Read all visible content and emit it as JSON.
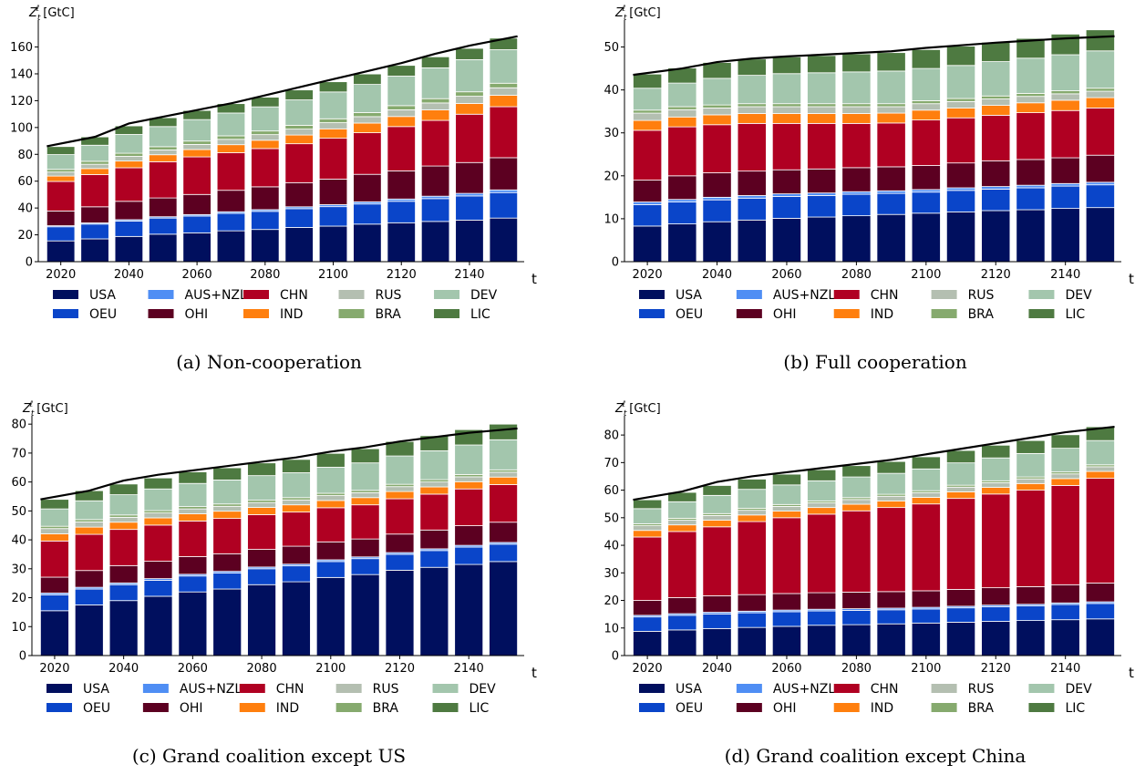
{
  "legend_order": [
    "USA",
    "OEU",
    "AUS+NZL",
    "OHI",
    "CHN",
    "IND",
    "RUS",
    "BRA",
    "DEV",
    "LIC"
  ],
  "series_styles": [
    {
      "name": "USA",
      "color": "#000f5e"
    },
    {
      "name": "OEU",
      "color": "#0a45c9"
    },
    {
      "name": "AUS+NZL",
      "color": "#4f8ef4"
    },
    {
      "name": "OHI",
      "color": "#5c0021"
    },
    {
      "name": "CHN",
      "color": "#b00022"
    },
    {
      "name": "IND",
      "color": "#ff7f0e"
    },
    {
      "name": "RUS",
      "color": "#b4bfb1"
    },
    {
      "name": "BRA",
      "color": "#86aa6e"
    },
    {
      "name": "DEV",
      "color": "#a3c6ad"
    },
    {
      "name": "LIC",
      "color": "#4e7a41"
    }
  ],
  "chart_data": [
    {
      "type": "bar",
      "stacked": true,
      "caption": "(a) Non-cooperation",
      "ylabel": "Z_t^ℓ [GtC]",
      "xlabel": "t",
      "ylim": [
        0,
        176
      ],
      "yticks": [
        0,
        20,
        40,
        60,
        80,
        100,
        120,
        140,
        160
      ],
      "xticks": [
        2020,
        2040,
        2060,
        2080,
        2100,
        2120,
        2140
      ],
      "categories": [
        2020,
        2030,
        2040,
        2050,
        2060,
        2070,
        2080,
        2090,
        2100,
        2110,
        2120,
        2130,
        2140,
        2150
      ],
      "total_line": [
        86,
        93,
        103,
        108,
        113,
        118,
        124,
        130,
        136,
        142,
        148,
        155,
        161,
        168
      ],
      "series": [
        {
          "name": "USA",
          "values": [
            15.5,
            17,
            18.8,
            20.5,
            21.5,
            23,
            24,
            25.5,
            26.5,
            28,
            29,
            30,
            31,
            32.5
          ]
        },
        {
          "name": "OEU",
          "values": [
            10.5,
            11,
            11.5,
            12,
            12.5,
            13,
            13.5,
            14,
            14.5,
            15,
            16,
            17,
            18,
            19
          ]
        },
        {
          "name": "AUS+NZL",
          "values": [
            0.8,
            0.9,
            1,
            1,
            1.1,
            1.2,
            1.3,
            1.4,
            1.5,
            1.6,
            1.7,
            1.8,
            1.9,
            2
          ]
        },
        {
          "name": "OHI",
          "values": [
            11,
            12,
            13.7,
            14,
            15,
            16,
            17,
            18,
            19,
            20.5,
            21,
            22.5,
            23,
            24
          ]
        },
        {
          "name": "CHN",
          "values": [
            22,
            24,
            25,
            27,
            28,
            28,
            28.5,
            29,
            30.5,
            31,
            33,
            34,
            36,
            38
          ]
        },
        {
          "name": "IND",
          "values": [
            4,
            4.5,
            5,
            5.2,
            5.5,
            6,
            6.2,
            6.5,
            7,
            7.2,
            7.5,
            7.8,
            8,
            8.5
          ]
        },
        {
          "name": "RUS",
          "values": [
            3,
            3.2,
            3.5,
            3.6,
            3.8,
            4,
            4.2,
            4.4,
            4.6,
            4.8,
            5,
            5.2,
            5.4,
            5.6
          ]
        },
        {
          "name": "BRA",
          "values": [
            2,
            2.2,
            2.3,
            2.4,
            2.5,
            2.6,
            2.7,
            2.8,
            2.9,
            3,
            3.1,
            3.2,
            3.3,
            3.4
          ]
        },
        {
          "name": "DEV",
          "values": [
            11,
            12,
            14,
            15,
            16,
            17,
            18,
            19,
            20,
            21,
            22,
            23,
            24,
            25
          ]
        },
        {
          "name": "LIC",
          "values": [
            6,
            6.2,
            6.4,
            6.6,
            6.8,
            7,
            7.2,
            7.4,
            7.6,
            7.8,
            8,
            8.2,
            8.4,
            8.6
          ]
        }
      ]
    },
    {
      "type": "bar",
      "stacked": true,
      "caption": "(b) Full cooperation",
      "ylabel": "Z_t^ℓ [GtC]",
      "xlabel": "t",
      "ylim": [
        0,
        55
      ],
      "yticks": [
        0,
        10,
        20,
        30,
        40,
        50
      ],
      "xticks": [
        2020,
        2040,
        2060,
        2080,
        2100,
        2120,
        2140
      ],
      "categories": [
        2020,
        2030,
        2040,
        2050,
        2060,
        2070,
        2080,
        2090,
        2100,
        2110,
        2120,
        2130,
        2140,
        2150
      ],
      "total_line": [
        43.5,
        45,
        46.5,
        47.3,
        47.8,
        48.2,
        48.6,
        49,
        49.8,
        50.4,
        51,
        51.5,
        52,
        52.5
      ],
      "series": [
        {
          "name": "USA",
          "values": [
            8.3,
            8.8,
            9.3,
            9.7,
            10.1,
            10.4,
            10.7,
            11,
            11.3,
            11.6,
            11.9,
            12.1,
            12.4,
            12.6
          ]
        },
        {
          "name": "OEU",
          "values": [
            5,
            5.1,
            5.1,
            5.1,
            5.1,
            5,
            5,
            4.9,
            4.9,
            5,
            5,
            5.1,
            5.2,
            5.3
          ]
        },
        {
          "name": "AUS+NZL",
          "values": [
            0.6,
            0.6,
            0.6,
            0.6,
            0.6,
            0.6,
            0.6,
            0.6,
            0.6,
            0.6,
            0.6,
            0.6,
            0.6,
            0.6
          ]
        },
        {
          "name": "OHI",
          "values": [
            5.1,
            5.5,
            5.7,
            5.7,
            5.6,
            5.6,
            5.6,
            5.6,
            5.6,
            5.8,
            6,
            6,
            6,
            6.3
          ]
        },
        {
          "name": "CHN",
          "values": [
            11.6,
            11.4,
            11.2,
            11.1,
            10.8,
            10.6,
            10.3,
            10.2,
            10.6,
            10.5,
            10.6,
            10.9,
            11,
            11
          ]
        },
        {
          "name": "IND",
          "values": [
            2.3,
            2.3,
            2.3,
            2.3,
            2.3,
            2.3,
            2.3,
            2.3,
            2.3,
            2.3,
            2.3,
            2.3,
            2.4,
            2.4
          ]
        },
        {
          "name": "RUS",
          "values": [
            1.7,
            1.7,
            1.6,
            1.6,
            1.6,
            1.6,
            1.6,
            1.5,
            1.5,
            1.5,
            1.5,
            1.5,
            1.5,
            1.5
          ]
        },
        {
          "name": "BRA",
          "values": [
            0.7,
            0.7,
            0.7,
            0.7,
            0.7,
            0.7,
            0.7,
            0.7,
            0.7,
            0.7,
            0.7,
            0.7,
            0.7,
            0.7
          ]
        },
        {
          "name": "DEV",
          "values": [
            5.1,
            5.5,
            6.2,
            6.6,
            7,
            7.2,
            7.4,
            7.6,
            7.5,
            7.7,
            8,
            8.2,
            8.4,
            8.7
          ]
        },
        {
          "name": "LIC",
          "values": [
            3.3,
            3.5,
            3.7,
            3.8,
            3.9,
            4,
            4.2,
            4.3,
            4.4,
            4.5,
            4.5,
            4.6,
            4.8,
            4.9
          ]
        }
      ]
    },
    {
      "type": "bar",
      "stacked": true,
      "caption": "(c) Grand coalition except US",
      "ylabel": "Z_t^ℓ [GtC]",
      "xlabel": "t",
      "ylim": [
        0,
        81
      ],
      "yticks": [
        0,
        10,
        20,
        30,
        40,
        50,
        60,
        70,
        80
      ],
      "xticks": [
        2020,
        2040,
        2060,
        2080,
        2100,
        2120,
        2140
      ],
      "categories": [
        2020,
        2030,
        2040,
        2050,
        2060,
        2070,
        2080,
        2090,
        2100,
        2110,
        2120,
        2130,
        2140,
        2150
      ],
      "total_line": [
        54,
        57,
        60.5,
        62.5,
        64,
        65.5,
        67,
        68.5,
        70.5,
        72,
        74,
        75.5,
        77,
        78.5
      ],
      "series": [
        {
          "name": "USA",
          "values": [
            15.5,
            17.5,
            19,
            20.5,
            22,
            23,
            24.5,
            25.5,
            27,
            28,
            29.5,
            30.5,
            31.5,
            32.5
          ]
        },
        {
          "name": "OEU",
          "values": [
            5.5,
            5.5,
            5.5,
            5.5,
            5.5,
            5.5,
            5.5,
            5.5,
            5.5,
            5.5,
            5.5,
            5.8,
            6,
            6
          ]
        },
        {
          "name": "AUS+NZL",
          "values": [
            0.6,
            0.6,
            0.6,
            0.6,
            0.6,
            0.6,
            0.6,
            0.6,
            0.6,
            0.6,
            0.6,
            0.6,
            0.6,
            0.6
          ]
        },
        {
          "name": "OHI",
          "values": [
            5.5,
            5.8,
            6,
            6,
            6.1,
            6.1,
            6.1,
            6.2,
            6.2,
            6.2,
            6.4,
            6.5,
            6.8,
            7
          ]
        },
        {
          "name": "CHN",
          "values": [
            12.5,
            12.5,
            12.5,
            12.5,
            12.3,
            12.2,
            12,
            11.8,
            11.8,
            11.8,
            12.2,
            12.4,
            12.7,
            13
          ]
        },
        {
          "name": "IND",
          "values": [
            2.5,
            2.5,
            2.5,
            2.5,
            2.5,
            2.5,
            2.5,
            2.5,
            2.5,
            2.5,
            2.5,
            2.5,
            2.5,
            2.6
          ]
        },
        {
          "name": "RUS",
          "values": [
            1.8,
            1.8,
            1.7,
            1.7,
            1.7,
            1.7,
            1.7,
            1.7,
            1.7,
            1.7,
            1.7,
            1.7,
            1.7,
            1.7
          ]
        },
        {
          "name": "BRA",
          "values": [
            0.8,
            0.8,
            0.8,
            0.8,
            0.8,
            0.8,
            0.8,
            0.8,
            0.8,
            0.8,
            0.8,
            0.8,
            0.8,
            0.8
          ]
        },
        {
          "name": "DEV",
          "values": [
            6,
            6.5,
            7,
            7.5,
            8,
            8.3,
            8.5,
            8.6,
            9,
            9.5,
            9.8,
            10,
            10.2,
            10.4
          ]
        },
        {
          "name": "LIC",
          "values": [
            3.3,
            3.5,
            3.7,
            3.8,
            4,
            4.2,
            4.4,
            4.6,
            4.8,
            4.9,
            5,
            5.2,
            5.3,
            5.4
          ]
        }
      ]
    },
    {
      "type": "bar",
      "stacked": true,
      "caption": "(d) Grand coalition except China",
      "ylabel": "Z_t^ℓ [GtC]",
      "xlabel": "t",
      "ylim": [
        0,
        85
      ],
      "yticks": [
        0,
        10,
        20,
        30,
        40,
        50,
        60,
        70,
        80
      ],
      "xticks": [
        2020,
        2040,
        2060,
        2080,
        2100,
        2120,
        2140
      ],
      "categories": [
        2020,
        2030,
        2040,
        2050,
        2060,
        2070,
        2080,
        2090,
        2100,
        2110,
        2120,
        2130,
        2140,
        2150
      ],
      "total_line": [
        56.5,
        59.5,
        63,
        65,
        66.5,
        68,
        69.5,
        71,
        73,
        75,
        77,
        79,
        81,
        83
      ],
      "series": [
        {
          "name": "USA",
          "values": [
            8.8,
            9.3,
            9.8,
            10.2,
            10.6,
            11,
            11.2,
            11.5,
            11.8,
            12.1,
            12.4,
            12.7,
            13,
            13.3
          ]
        },
        {
          "name": "OEU",
          "values": [
            5.2,
            5.3,
            5.3,
            5.3,
            5.3,
            5.2,
            5.2,
            5.1,
            5.1,
            5.2,
            5.3,
            5.3,
            5.5,
            5.6
          ]
        },
        {
          "name": "AUS+NZL",
          "values": [
            0.6,
            0.6,
            0.6,
            0.6,
            0.6,
            0.6,
            0.6,
            0.6,
            0.6,
            0.6,
            0.6,
            0.6,
            0.6,
            0.6
          ]
        },
        {
          "name": "OHI",
          "values": [
            5.4,
            5.8,
            6,
            6,
            6,
            6,
            6,
            6,
            6,
            6.1,
            6.3,
            6.4,
            6.6,
            6.8
          ]
        },
        {
          "name": "CHN",
          "values": [
            23,
            24,
            25,
            26.5,
            27.5,
            28.5,
            29.5,
            30.5,
            31.5,
            33,
            34,
            35,
            36,
            38
          ]
        },
        {
          "name": "IND",
          "values": [
            2.4,
            2.4,
            2.4,
            2.4,
            2.4,
            2.4,
            2.4,
            2.4,
            2.4,
            2.4,
            2.4,
            2.4,
            2.5,
            2.5
          ]
        },
        {
          "name": "RUS",
          "values": [
            1.7,
            1.7,
            1.7,
            1.7,
            1.7,
            1.7,
            1.7,
            1.7,
            1.7,
            1.7,
            1.7,
            1.7,
            1.7,
            1.7
          ]
        },
        {
          "name": "BRA",
          "values": [
            0.7,
            0.7,
            0.7,
            0.7,
            0.7,
            0.7,
            0.7,
            0.7,
            0.7,
            0.7,
            0.7,
            0.7,
            0.7,
            0.7
          ]
        },
        {
          "name": "DEV",
          "values": [
            5.5,
            6,
            6.6,
            6.9,
            7.1,
            7.3,
            7.5,
            7.6,
            7.9,
            8.1,
            8.3,
            8.5,
            8.6,
            8.8
          ]
        },
        {
          "name": "LIC",
          "values": [
            3.2,
            3.4,
            3.6,
            3.7,
            3.9,
            4,
            4.1,
            4.3,
            4.4,
            4.5,
            4.6,
            4.7,
            4.9,
            5
          ]
        }
      ]
    }
  ]
}
